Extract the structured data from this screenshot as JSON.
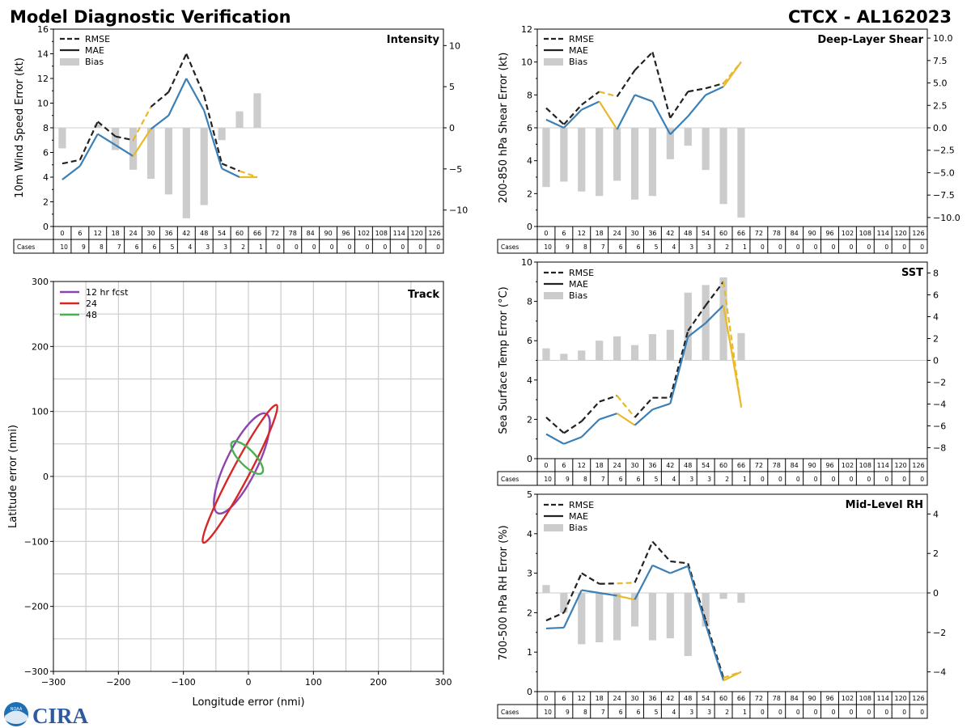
{
  "header": {
    "left_title": "Model Diagnostic Verification",
    "right_title": "CTCX - AL162023"
  },
  "legend": {
    "rmse": "RMSE",
    "mae": "MAE",
    "bias": "Bias"
  },
  "cases_label": "Cases",
  "colors": {
    "rmse": "#222222",
    "mae": "#3a7fb6",
    "bias": "#cccccc",
    "highlight": "#e8b92a",
    "grid": "#cccccc",
    "fcst12": "#8e44ad",
    "fcst24": "#d62728",
    "fcst48": "#4caf50"
  },
  "chart_data": [
    {
      "id": "intensity",
      "type": "line",
      "title": "Intensity",
      "ylabel": "10m Wind Speed Error (kt)",
      "x": [
        0,
        6,
        12,
        18,
        24,
        30,
        36,
        42,
        48,
        54,
        60,
        66
      ],
      "ylim": [
        0,
        16
      ],
      "yticks": [
        0,
        2,
        4,
        6,
        8,
        10,
        12,
        14,
        16
      ],
      "y2lim": [
        -12,
        12
      ],
      "y2ticks": [
        -10,
        -5,
        0,
        5,
        10
      ],
      "y2ticklabels": [
        "−10",
        "−5",
        "0",
        "5",
        "10"
      ],
      "series": [
        {
          "name": "RMSE",
          "values": [
            5.1,
            5.4,
            8.5,
            7.3,
            7.0,
            9.7,
            10.9,
            14.0,
            10.6,
            5.1,
            4.5,
            4.0
          ]
        },
        {
          "name": "MAE",
          "values": [
            3.8,
            4.9,
            7.5,
            6.6,
            5.7,
            7.9,
            9.0,
            12.0,
            9.4,
            4.7,
            4.0,
            4.0
          ]
        },
        {
          "name": "Bias",
          "values": [
            -2.5,
            0,
            0.4,
            -2.7,
            -5.1,
            -6.2,
            -8.1,
            -11.0,
            -9.4,
            -1.5,
            2.0,
            4.2
          ]
        }
      ],
      "highlight": [
        [
          4,
          5
        ],
        [
          10,
          11
        ]
      ],
      "lead_times": [
        "0",
        "6",
        "12",
        "18",
        "24",
        "30",
        "36",
        "42",
        "48",
        "54",
        "60",
        "66",
        "72",
        "78",
        "84",
        "90",
        "96",
        "102",
        "108",
        "114",
        "120",
        "126"
      ],
      "cases": [
        "10",
        "9",
        "8",
        "7",
        "6",
        "6",
        "5",
        "4",
        "3",
        "3",
        "2",
        "1",
        "0",
        "0",
        "0",
        "0",
        "0",
        "0",
        "0",
        "0",
        "0",
        "0"
      ]
    },
    {
      "id": "shear",
      "type": "line",
      "title": "Deep-Layer Shear",
      "ylabel": "200-850 hPa Shear Error (kt)",
      "x": [
        0,
        6,
        12,
        18,
        24,
        30,
        36,
        42,
        48,
        54,
        60,
        66
      ],
      "ylim": [
        0,
        12
      ],
      "yticks": [
        0,
        2,
        4,
        6,
        8,
        10,
        12
      ],
      "y2lim": [
        -11,
        11
      ],
      "y2ticks": [
        -10,
        -7.5,
        -5,
        -2.5,
        0,
        2.5,
        5,
        7.5,
        10
      ],
      "y2ticklabels": [
        "−10.0",
        "−7.5",
        "−5.0",
        "−2.5",
        "0.0",
        "2.5",
        "5.0",
        "7.5",
        "10.0"
      ],
      "series": [
        {
          "name": "RMSE",
          "values": [
            7.2,
            6.2,
            7.4,
            8.2,
            7.9,
            9.5,
            10.6,
            6.6,
            8.2,
            8.4,
            8.7,
            10.0
          ]
        },
        {
          "name": "MAE",
          "values": [
            6.5,
            6.0,
            7.1,
            7.6,
            5.9,
            8.0,
            7.6,
            5.6,
            6.7,
            8.0,
            8.5,
            10.0
          ]
        },
        {
          "name": "Bias",
          "values": [
            -6.6,
            -6.0,
            -7.1,
            -7.6,
            -5.9,
            -8.0,
            -7.6,
            -3.5,
            -2.0,
            -4.7,
            -8.5,
            -10.0
          ]
        }
      ],
      "highlight": [
        [
          3,
          4
        ],
        [
          10,
          11
        ]
      ],
      "lead_times": [
        "0",
        "6",
        "12",
        "18",
        "24",
        "30",
        "36",
        "42",
        "48",
        "54",
        "60",
        "66",
        "72",
        "78",
        "84",
        "90",
        "96",
        "102",
        "108",
        "114",
        "120",
        "126"
      ],
      "cases": [
        "10",
        "9",
        "8",
        "7",
        "6",
        "6",
        "5",
        "4",
        "3",
        "3",
        "2",
        "1",
        "0",
        "0",
        "0",
        "0",
        "0",
        "0",
        "0",
        "0",
        "0",
        "0"
      ]
    },
    {
      "id": "track",
      "type": "scatter",
      "title": "Track",
      "xlabel": "Longitude error (nmi)",
      "ylabel": "Latitude error (nmi)",
      "xlim": [
        -300,
        300
      ],
      "ylim": [
        -300,
        300
      ],
      "xticks": [
        -300,
        -200,
        -100,
        0,
        100,
        200,
        300
      ],
      "xticklabels": [
        "−300",
        "−200",
        "−100",
        "0",
        "100",
        "200",
        "300"
      ],
      "yticks": [
        -300,
        -200,
        -100,
        0,
        100,
        200,
        300
      ],
      "yticklabels": [
        "−300",
        "−200",
        "−100",
        "0",
        "100",
        "200",
        "300"
      ],
      "ellipses": [
        {
          "name": "12 hr fcst",
          "cx": -10,
          "cy": 20,
          "a": 85,
          "b": 24,
          "angle": 64
        },
        {
          "name": "24",
          "cx": -13,
          "cy": 4,
          "a": 120,
          "b": 13,
          "angle": 62
        },
        {
          "name": "48",
          "cx": -2,
          "cy": 29,
          "a": 33,
          "b": 12,
          "angle": -46
        }
      ]
    },
    {
      "id": "sst",
      "type": "line",
      "title": "SST",
      "ylabel": "Sea Surface Temp Error (°C)",
      "x": [
        0,
        6,
        12,
        18,
        24,
        30,
        36,
        42,
        48,
        54,
        60,
        66
      ],
      "ylim": [
        0,
        10
      ],
      "yticks": [
        0,
        2,
        4,
        6,
        8,
        10
      ],
      "y2lim": [
        -9,
        9
      ],
      "y2ticks": [
        -8,
        -6,
        -4,
        -2,
        0,
        2,
        4,
        6,
        8
      ],
      "y2ticklabels": [
        "−8",
        "−6",
        "−4",
        "−2",
        "0",
        "2",
        "4",
        "6",
        "8"
      ],
      "series": [
        {
          "name": "RMSE",
          "values": [
            2.1,
            1.3,
            1.9,
            2.9,
            3.2,
            2.1,
            3.1,
            3.1,
            6.5,
            7.8,
            9.0,
            2.6
          ]
        },
        {
          "name": "MAE",
          "values": [
            1.25,
            0.75,
            1.1,
            2.0,
            2.3,
            1.7,
            2.5,
            2.8,
            6.2,
            6.9,
            7.8,
            2.7
          ]
        },
        {
          "name": "Bias",
          "values": [
            1.1,
            0.6,
            0.9,
            1.8,
            2.2,
            1.4,
            2.4,
            2.8,
            6.2,
            6.9,
            7.6,
            2.5
          ]
        }
      ],
      "highlight": [
        [
          4,
          5
        ],
        [
          10,
          11
        ]
      ],
      "lead_times": [
        "0",
        "6",
        "12",
        "18",
        "24",
        "30",
        "36",
        "42",
        "48",
        "54",
        "60",
        "66",
        "72",
        "78",
        "84",
        "90",
        "96",
        "102",
        "108",
        "114",
        "120",
        "126"
      ],
      "cases": [
        "10",
        "9",
        "8",
        "7",
        "6",
        "6",
        "5",
        "4",
        "3",
        "3",
        "2",
        "1",
        "0",
        "0",
        "0",
        "0",
        "0",
        "0",
        "0",
        "0",
        "0",
        "0"
      ]
    },
    {
      "id": "rh",
      "type": "line",
      "title": "Mid-Level RH",
      "ylabel": "700-500 hPa RH Error (%)",
      "x": [
        0,
        6,
        12,
        18,
        24,
        30,
        36,
        42,
        48,
        54,
        60,
        66
      ],
      "ylim": [
        0,
        5
      ],
      "yticks": [
        0,
        1,
        2,
        3,
        4,
        5
      ],
      "y2lim": [
        -5,
        5
      ],
      "y2ticks": [
        -4,
        -2,
        0,
        2,
        4
      ],
      "y2ticklabels": [
        "−4",
        "−2",
        "0",
        "2",
        "4"
      ],
      "series": [
        {
          "name": "RMSE",
          "values": [
            1.8,
            2.0,
            3.0,
            2.73,
            2.74,
            2.76,
            3.8,
            3.3,
            3.25,
            1.8,
            0.35,
            0.5
          ]
        },
        {
          "name": "MAE",
          "values": [
            1.6,
            1.62,
            2.57,
            2.5,
            2.43,
            2.33,
            3.2,
            3.0,
            3.18,
            1.7,
            0.28,
            0.5
          ]
        },
        {
          "name": "Bias",
          "values": [
            0.4,
            -1.0,
            -2.6,
            -2.5,
            -2.4,
            -1.7,
            -2.4,
            -2.3,
            -3.2,
            -1.7,
            -0.3,
            -0.5
          ]
        }
      ],
      "highlight": [
        [
          4,
          5
        ],
        [
          10,
          11
        ]
      ],
      "lead_times": [
        "0",
        "6",
        "12",
        "18",
        "24",
        "30",
        "36",
        "42",
        "48",
        "54",
        "60",
        "66",
        "72",
        "78",
        "84",
        "90",
        "96",
        "102",
        "108",
        "114",
        "120",
        "126"
      ],
      "cases": [
        "10",
        "9",
        "8",
        "7",
        "6",
        "6",
        "5",
        "4",
        "3",
        "3",
        "2",
        "1",
        "0",
        "0",
        "0",
        "0",
        "0",
        "0",
        "0",
        "0",
        "0",
        "0"
      ]
    }
  ],
  "logo": {
    "text": "CIRA",
    "badge_text": "NOAA"
  }
}
